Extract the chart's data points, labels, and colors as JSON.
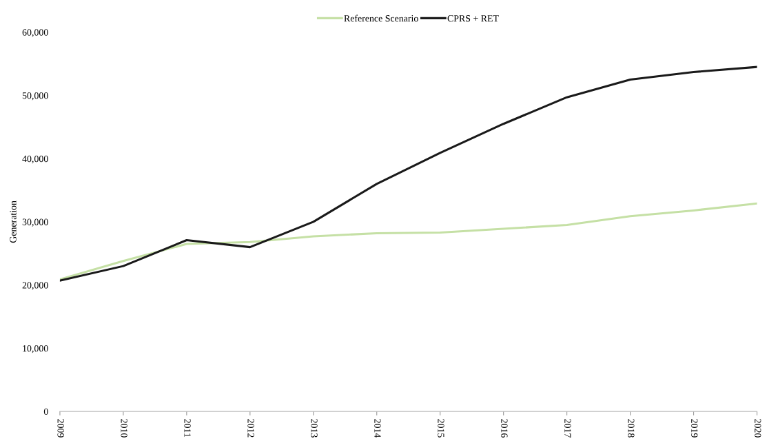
{
  "chart_data": {
    "type": "line",
    "ylabel": "Generation",
    "x": [
      2009,
      2010,
      2011,
      2012,
      2013,
      2014,
      2015,
      2016,
      2017,
      2018,
      2019,
      2020
    ],
    "xlim": [
      2009,
      2020
    ],
    "xticks": [
      2009,
      2010,
      2011,
      2012,
      2013,
      2014,
      2015,
      2016,
      2017,
      2018,
      2019,
      2020
    ],
    "ylim": [
      0,
      60000
    ],
    "yticks": [
      {
        "value": 0,
        "label": "0"
      },
      {
        "value": 10000,
        "label": "10,000"
      },
      {
        "value": 20000,
        "label": "20,000"
      },
      {
        "value": 30000,
        "label": "30,000"
      },
      {
        "value": 40000,
        "label": "40,000"
      },
      {
        "value": 50000,
        "label": "50,000"
      },
      {
        "value": 60000,
        "label": "60,000"
      }
    ],
    "legend": "top",
    "grid": false,
    "marker": "none",
    "line_style": "solid",
    "series": [
      {
        "name": "Reference Scenario",
        "color": "#c5e0a5",
        "values": [
          20900,
          23800,
          26500,
          26800,
          27700,
          28200,
          28300,
          28900,
          29500,
          30900,
          31800,
          32900
        ]
      },
      {
        "name": "CPRS + RET",
        "color": "#1a1a1a",
        "values": [
          20700,
          23000,
          27100,
          26000,
          30000,
          36000,
          40900,
          45500,
          49700,
          52500,
          53700,
          54500
        ]
      }
    ]
  }
}
